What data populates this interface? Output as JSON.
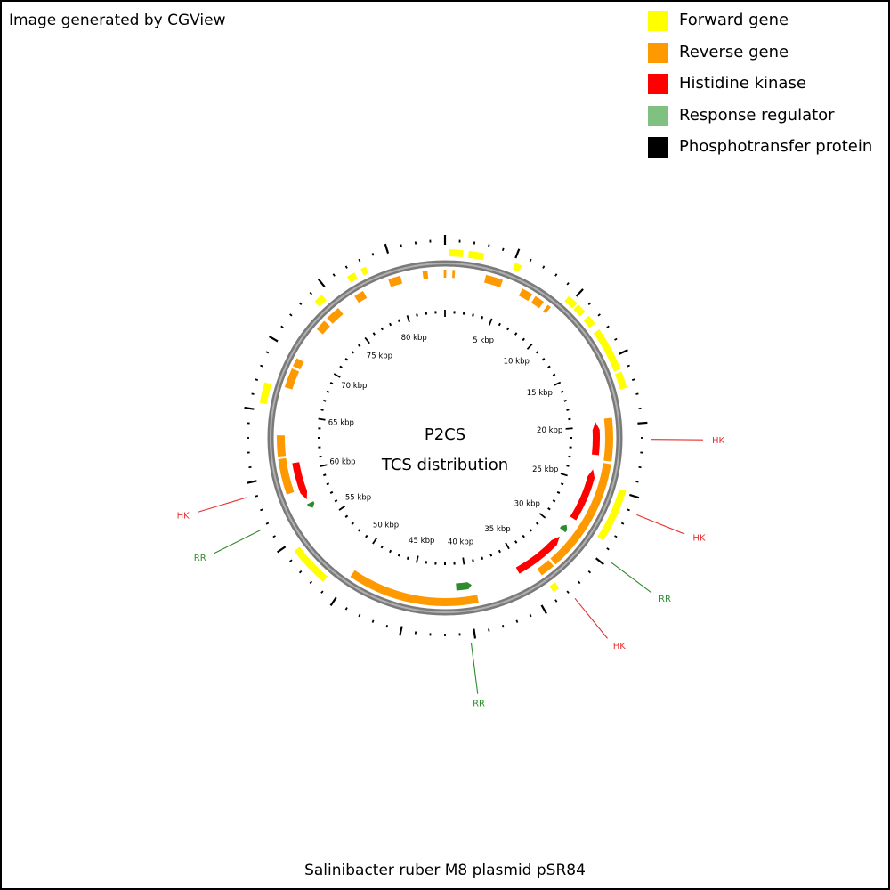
{
  "credit": "Image generated by CGView",
  "legend": [
    {
      "label": "Forward gene",
      "color": "#ffff00"
    },
    {
      "label": "Reverse gene",
      "color": "#ff9900"
    },
    {
      "label": "Histidine kinase",
      "color": "#ff0000"
    },
    {
      "label": "Response regulator",
      "color": "#80c080"
    },
    {
      "label": "Phosphotransfer protein",
      "color": "#000000"
    }
  ],
  "center": {
    "line1": "P2CS",
    "line2": "TCS distribution"
  },
  "footer": "Salinibacter ruber M8 plasmid pSR84",
  "map": {
    "total_kbp": 84,
    "tick_labels": [
      "5 kbp",
      "10 kbp",
      "15 kbp",
      "20 kbp",
      "25 kbp",
      "30 kbp",
      "35 kbp",
      "40 kbp",
      "45 kbp",
      "50 kbp",
      "55 kbp",
      "60 kbp",
      "65 kbp",
      "70 kbp",
      "75 kbp",
      "80 kbp"
    ],
    "forward_genes_kbp": [
      [
        0.3,
        1.3
      ],
      [
        1.7,
        2.8
      ],
      [
        5.1,
        5.6
      ],
      [
        9.6,
        10.4
      ],
      [
        10.5,
        11.2
      ],
      [
        11.6,
        12.3
      ],
      [
        12.8,
        14.8
      ],
      [
        14.8,
        16.0
      ],
      [
        16.2,
        17.4
      ],
      [
        24.8,
        28.7
      ],
      [
        33.3,
        33.8
      ],
      [
        51.4,
        52.7
      ],
      [
        52.7,
        54.4
      ],
      [
        65.5,
        67.0
      ],
      [
        73.8,
        74.5
      ],
      [
        76.7,
        77.3
      ],
      [
        77.8,
        78.2
      ]
    ],
    "reverse_genes_kbp": [
      [
        -0.1,
        0.1
      ],
      [
        0.6,
        0.8
      ],
      [
        3.3,
        4.7
      ],
      [
        6.4,
        7.3
      ],
      [
        7.6,
        8.4
      ],
      [
        8.8,
        9.1
      ],
      [
        19.4,
        22.9
      ],
      [
        23.1,
        32.4
      ],
      [
        32.6,
        33.8
      ],
      [
        39.3,
        50.0
      ],
      [
        58.4,
        61.3
      ],
      [
        61.5,
        63.2
      ],
      [
        67.1,
        68.7
      ],
      [
        68.9,
        69.6
      ],
      [
        72.4,
        73.3
      ],
      [
        73.6,
        74.8
      ],
      [
        76.4,
        77.2
      ],
      [
        79.4,
        80.4
      ],
      [
        82.2,
        82.6
      ]
    ],
    "histidine_kinase_kbp": [
      [
        19.6,
        22.5
      ],
      [
        23.8,
        28.5
      ],
      [
        30.5,
        35.3
      ],
      [
        57.4,
        60.8
      ]
    ],
    "response_regulator_kbp": [
      [
        29.3,
        29.9
      ],
      [
        39.6,
        41.0
      ],
      [
        56.5,
        57.0
      ]
    ],
    "phosphotransfer_kbp": [],
    "labels": [
      {
        "text": "HK",
        "kind": "HK",
        "kbp": 21.1
      },
      {
        "text": "HK",
        "kind": "HK",
        "kbp": 26.1
      },
      {
        "text": "RR",
        "kind": "RR",
        "kbp": 29.6
      },
      {
        "text": "HK",
        "kind": "HK",
        "kbp": 32.9
      },
      {
        "text": "RR",
        "kind": "RR",
        "kbp": 40.3
      },
      {
        "text": "RR",
        "kind": "RR",
        "kbp": 56.8
      },
      {
        "text": "HK",
        "kind": "HK",
        "kbp": 59.1
      }
    ]
  }
}
